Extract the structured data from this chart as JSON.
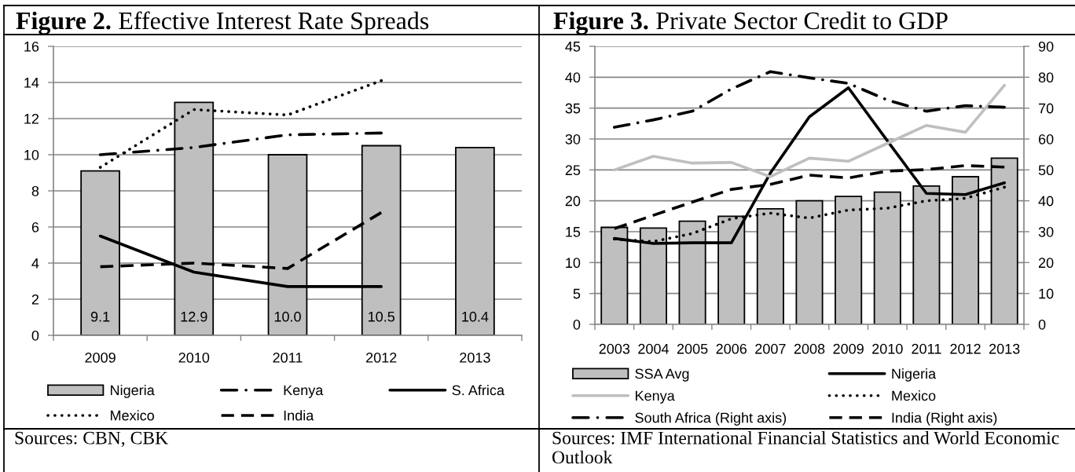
{
  "chart_data": [
    {
      "type": "bar",
      "title": "Figure 2. Effective Interest Rate Spreads",
      "categories": [
        "2009",
        "2010",
        "2011",
        "2012",
        "2013"
      ],
      "series": [
        {
          "name": "Nigeria",
          "color": "#bfbfbf",
          "values": [
            9.1,
            12.9,
            10.0,
            10.5,
            10.4
          ],
          "value_labels": [
            "9.1",
            "12.9",
            "10.0",
            "10.5",
            "10.4"
          ]
        },
        {
          "name": "Kenya",
          "type": "line",
          "color": "#000000",
          "line_style": "dashdot",
          "values": [
            10.0,
            10.4,
            11.1,
            11.2,
            null
          ]
        },
        {
          "name": "S. Africa",
          "type": "line",
          "color": "#000000",
          "line_style": "solid",
          "values": [
            5.5,
            3.5,
            2.7,
            2.7,
            null
          ]
        },
        {
          "name": "Mexico",
          "type": "line",
          "color": "#000000",
          "line_style": "dotted",
          "values": [
            9.3,
            12.5,
            12.2,
            14.1,
            null
          ]
        },
        {
          "name": "India",
          "type": "line",
          "color": "#000000",
          "line_style": "dashed",
          "values": [
            3.8,
            4.0,
            3.7,
            6.8,
            null
          ]
        }
      ],
      "ylim": [
        0,
        16
      ],
      "yticks": [
        0,
        2,
        4,
        6,
        8,
        10,
        12,
        14,
        16
      ],
      "grid": "y",
      "legend": "bottom",
      "annotations": [
        "Sources: CBN, CBK"
      ]
    },
    {
      "type": "bar",
      "title": "Figure 3. Private Sector Credit to GDP",
      "categories": [
        "2003",
        "2004",
        "2005",
        "2006",
        "2007",
        "2008",
        "2009",
        "2010",
        "2011",
        "2012",
        "2013"
      ],
      "series": [
        {
          "name": "SSA Avg",
          "color": "#bfbfbf",
          "values": [
            15.7,
            15.6,
            16.7,
            17.5,
            18.7,
            20.0,
            20.7,
            21.4,
            22.4,
            23.9,
            26.9
          ]
        },
        {
          "name": "Nigeria",
          "type": "line",
          "color": "#000000",
          "line_style": "solid",
          "values": [
            13.9,
            13.1,
            13.2,
            13.2,
            24.5,
            33.6,
            38.3,
            29.7,
            21.2,
            21.0,
            22.9
          ]
        },
        {
          "name": "Kenya",
          "type": "line",
          "color": "#bfbfbf",
          "line_style": "solid",
          "values": [
            25.0,
            27.2,
            26.1,
            26.2,
            23.9,
            26.9,
            26.4,
            29.3,
            32.2,
            31.1,
            38.7
          ]
        },
        {
          "name": "Mexico",
          "type": "line",
          "color": "#000000",
          "line_style": "dotted",
          "values": [
            13.8,
            13.4,
            14.7,
            17.1,
            18.0,
            17.2,
            18.5,
            18.8,
            20.0,
            20.4,
            22.2
          ]
        },
        {
          "name": "South Africa (Right axis)",
          "type": "line",
          "color": "#000000",
          "line_style": "dashdot",
          "axis": "y2",
          "values": [
            63.8,
            66.2,
            69.0,
            76.2,
            81.8,
            79.8,
            78.0,
            72.6,
            69.0,
            70.8,
            70.3
          ]
        },
        {
          "name": "India (Right axis)",
          "type": "line",
          "color": "#000000",
          "line_style": "dashed",
          "axis": "y2",
          "values": [
            31.0,
            35.3,
            39.6,
            43.7,
            45.3,
            48.3,
            47.4,
            49.6,
            50.1,
            51.4,
            50.9
          ]
        }
      ],
      "ylim": [
        0,
        45
      ],
      "yticks": [
        0,
        5,
        10,
        15,
        20,
        25,
        30,
        35,
        40,
        45
      ],
      "y2lim": [
        0,
        90
      ],
      "y2ticks": [
        0,
        10,
        20,
        30,
        40,
        50,
        60,
        70,
        80,
        90
      ],
      "grid": "y",
      "legend": "bottom",
      "annotations": [
        "Sources: IMF International Financial Statistics and World Economic Outlook"
      ]
    }
  ]
}
